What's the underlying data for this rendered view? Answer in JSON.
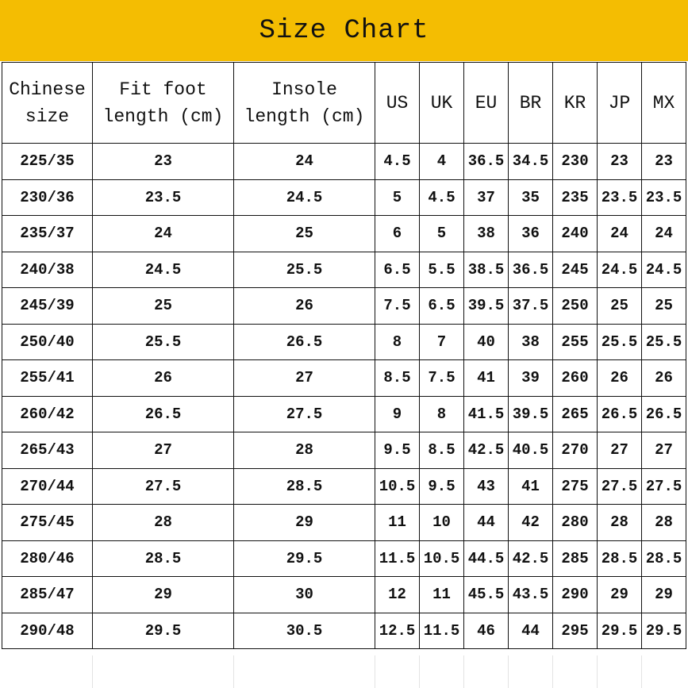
{
  "title": "Size Chart",
  "colors": {
    "banner": "#F4BD02",
    "border": "#111111"
  },
  "table": {
    "headers": [
      "Chinese size",
      "Fit foot length (cm)",
      "Insole length (cm)",
      "US",
      "UK",
      "EU",
      "BR",
      "KR",
      "JP",
      "MX"
    ],
    "header_lines": [
      [
        "Chinese",
        "size"
      ],
      [
        "Fit foot",
        "length (cm)"
      ],
      [
        "Insole",
        "length (cm)"
      ],
      [
        "US"
      ],
      [
        "UK"
      ],
      [
        "EU"
      ],
      [
        "BR"
      ],
      [
        "KR"
      ],
      [
        "JP"
      ],
      [
        "MX"
      ]
    ],
    "rows": [
      [
        "225/35",
        "23",
        "24",
        "4.5",
        "4",
        "36.5",
        "34.5",
        "230",
        "23",
        "23"
      ],
      [
        "230/36",
        "23.5",
        "24.5",
        "5",
        "4.5",
        "37",
        "35",
        "235",
        "23.5",
        "23.5"
      ],
      [
        "235/37",
        "24",
        "25",
        "6",
        "5",
        "38",
        "36",
        "240",
        "24",
        "24"
      ],
      [
        "240/38",
        "24.5",
        "25.5",
        "6.5",
        "5.5",
        "38.5",
        "36.5",
        "245",
        "24.5",
        "24.5"
      ],
      [
        "245/39",
        "25",
        "26",
        "7.5",
        "6.5",
        "39.5",
        "37.5",
        "250",
        "25",
        "25"
      ],
      [
        "250/40",
        "25.5",
        "26.5",
        "8",
        "7",
        "40",
        "38",
        "255",
        "25.5",
        "25.5"
      ],
      [
        "255/41",
        "26",
        "27",
        "8.5",
        "7.5",
        "41",
        "39",
        "260",
        "26",
        "26"
      ],
      [
        "260/42",
        "26.5",
        "27.5",
        "9",
        "8",
        "41.5",
        "39.5",
        "265",
        "26.5",
        "26.5"
      ],
      [
        "265/43",
        "27",
        "28",
        "9.5",
        "8.5",
        "42.5",
        "40.5",
        "270",
        "27",
        "27"
      ],
      [
        "270/44",
        "27.5",
        "28.5",
        "10.5",
        "9.5",
        "43",
        "41",
        "275",
        "27.5",
        "27.5"
      ],
      [
        "275/45",
        "28",
        "29",
        "11",
        "10",
        "44",
        "42",
        "280",
        "28",
        "28"
      ],
      [
        "280/46",
        "28.5",
        "29.5",
        "11.5",
        "10.5",
        "44.5",
        "42.5",
        "285",
        "28.5",
        "28.5"
      ],
      [
        "285/47",
        "29",
        "30",
        "12",
        "11",
        "45.5",
        "43.5",
        "290",
        "29",
        "29"
      ],
      [
        "290/48",
        "29.5",
        "30.5",
        "12.5",
        "11.5",
        "46",
        "44",
        "295",
        "29.5",
        "29.5"
      ]
    ]
  }
}
